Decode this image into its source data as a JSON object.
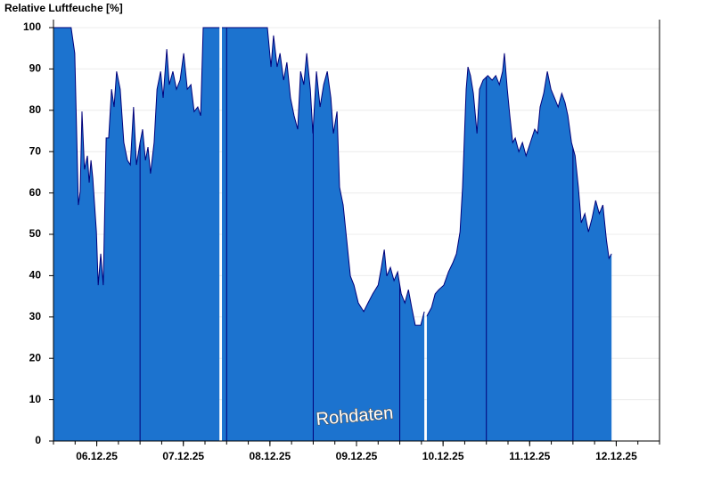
{
  "chart_data": {
    "type": "area",
    "title": "Relative Luftfeuche [%]",
    "annotation": "Rohdaten",
    "color": "#1c73cf",
    "line_color": "#00007a",
    "xlim": [
      0,
      168
    ],
    "ylim": [
      0,
      100
    ],
    "yticks": [
      0,
      10,
      20,
      30,
      40,
      50,
      60,
      70,
      80,
      90,
      100
    ],
    "xticks": [
      {
        "value": 12,
        "label": "06.12.25"
      },
      {
        "value": 36,
        "label": "07.12.25"
      },
      {
        "value": 60,
        "label": "08.12.25"
      },
      {
        "value": 84,
        "label": "09.12.25"
      },
      {
        "value": 108,
        "label": "10.12.25"
      },
      {
        "value": 132,
        "label": "11.12.25"
      },
      {
        "value": 156,
        "label": "12.12.25"
      }
    ],
    "minor_xticks": [
      0,
      6,
      12,
      18,
      24,
      30,
      36,
      42,
      48,
      54,
      60,
      66,
      72,
      78,
      84,
      90,
      96,
      102,
      108,
      114,
      120,
      126,
      132,
      138,
      144,
      150,
      156,
      162,
      168
    ],
    "day_separators": [
      24,
      48,
      72,
      96,
      120,
      144
    ],
    "grid": true,
    "x": [
      0,
      4.9,
      5.9,
      6.9,
      7.4,
      7.9,
      8.6,
      9.4,
      9.9,
      10.4,
      10.9,
      11.9,
      12.4,
      13.1,
      13.8,
      14.6,
      15.3,
      16.1,
      16.8,
      17.5,
      18.5,
      19.5,
      20.5,
      21.3,
      22.2,
      23.0,
      24.0,
      24.7,
      25.5,
      26.2,
      26.9,
      27.9,
      28.7,
      29.7,
      30.4,
      31.4,
      32.1,
      33.1,
      34.1,
      35.1,
      36.1,
      37.1,
      38.1,
      39.0,
      40.0,
      40.8,
      41.5,
      46.0,
      46.3,
      46.7,
      59.3,
      60.3,
      61.0,
      62.0,
      62.8,
      63.8,
      64.7,
      65.7,
      66.7,
      67.7,
      68.5,
      69.4,
      70.2,
      71.2,
      71.9,
      72.9,
      73.9,
      74.9,
      75.9,
      76.9,
      77.6,
      78.6,
      79.3,
      80.3,
      81.3,
      82.3,
      83.3,
      84.5,
      86.0,
      87.2,
      88.5,
      90.0,
      90.9,
      91.7,
      92.4,
      93.4,
      94.4,
      95.4,
      96.4,
      97.4,
      98.4,
      99.3,
      100.3,
      101.8,
      102.8,
      103.1,
      103.5,
      104.8,
      105.8,
      106.8,
      108.2,
      109.5,
      110.7,
      111.7,
      112.7,
      113.4,
      113.9,
      114.4,
      114.9,
      115.6,
      116.4,
      117.4,
      118.1,
      119.1,
      120.4,
      121.6,
      122.6,
      123.6,
      124.5,
      125.0,
      125.8,
      126.5,
      127.3,
      128.0,
      129.0,
      130.0,
      131.0,
      132.2,
      133.4,
      134.2,
      134.9,
      135.9,
      136.9,
      137.9,
      138.9,
      139.9,
      140.9,
      141.8,
      142.6,
      143.6,
      144.6,
      145.5,
      146.3,
      147.3,
      148.3,
      149.3,
      150.3,
      151.3,
      152.3,
      153.3,
      154.0,
      154.7
    ],
    "values": [
      100,
      100,
      93.8,
      57.1,
      60.3,
      79.7,
      65.7,
      69.0,
      62.5,
      67.9,
      63.6,
      50.6,
      37.7,
      45.3,
      37.7,
      73.3,
      73.3,
      85.1,
      80.8,
      89.4,
      85.1,
      72.2,
      67.9,
      66.8,
      80.8,
      66.8,
      72.2,
      75.4,
      67.9,
      71.1,
      64.7,
      72.2,
      85.1,
      89.4,
      83.0,
      94.8,
      86.2,
      89.4,
      85.1,
      87.3,
      93.8,
      85.1,
      86.2,
      79.7,
      80.8,
      78.7,
      100,
      100,
      null,
      100,
      100,
      90.5,
      98.1,
      90.5,
      93.8,
      87.3,
      91.6,
      83.0,
      78.7,
      75.4,
      89.4,
      86.2,
      93.8,
      85.1,
      74.4,
      89.4,
      80.8,
      86.2,
      89.4,
      83.0,
      74.4,
      79.7,
      61.4,
      57.1,
      48.5,
      39.9,
      37.7,
      33.4,
      31.3,
      33.4,
      35.6,
      37.7,
      42.0,
      46.3,
      39.9,
      42.0,
      38.8,
      40.9,
      35.6,
      33.4,
      36.6,
      32.3,
      28.0,
      28.0,
      31.3,
      null,
      30.2,
      32.3,
      35.6,
      36.6,
      37.7,
      40.9,
      43.1,
      45.3,
      50.6,
      61.4,
      73.3,
      85.1,
      90.5,
      88.4,
      84.1,
      74.4,
      85.1,
      87.3,
      88.4,
      87.3,
      88.4,
      86.2,
      89.4,
      93.8,
      85.1,
      78.7,
      72.2,
      73.3,
      70.0,
      72.2,
      69.0,
      72.2,
      75.4,
      74.4,
      80.8,
      84.1,
      89.4,
      85.1,
      83.0,
      80.8,
      84.1,
      81.9,
      78.7,
      72.2,
      69.0,
      61.4,
      52.8,
      55.0,
      50.6,
      53.9,
      58.2,
      55.0,
      57.1,
      48.5,
      44.2,
      45.3
    ]
  }
}
